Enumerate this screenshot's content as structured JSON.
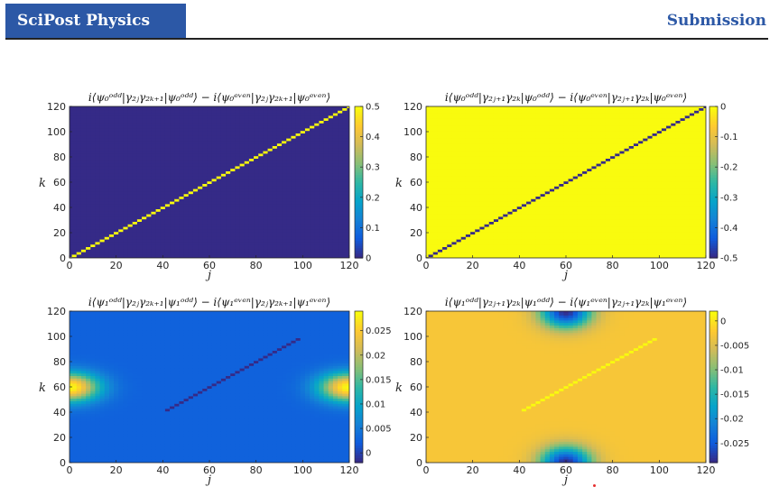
{
  "header": {
    "journal": "SciPost Physics",
    "label": "Submission",
    "brand_color": "#2c58a6",
    "rule_color": "#222222"
  },
  "colors": {
    "parula": [
      "#352a87",
      "#0f5cdd",
      "#1481d6",
      "#06a4ca",
      "#2eb7a4",
      "#87bf77",
      "#d1bb59",
      "#fec832",
      "#f9fb0e"
    ]
  },
  "chart_data": [
    {
      "type": "heatmap",
      "title": "i⟨ψ₀ᵒᵈᵈ|γ₂ⱼγ₂ₖ₊₁|ψ₀ᵒᵈᵈ⟩ − i⟨ψ₀ᵉᵛᵉⁿ|γ₂ⱼγ₂ₖ₊₁|ψ₀ᵉᵛᵉⁿ⟩",
      "xlabel": "j",
      "ylabel": "k",
      "xlim": [
        0,
        120
      ],
      "ylim": [
        0,
        120
      ],
      "xticks": [
        0,
        20,
        40,
        60,
        80,
        100,
        120
      ],
      "yticks": [
        0,
        20,
        40,
        60,
        80,
        100,
        120
      ],
      "clim": [
        0,
        0.5
      ],
      "cticks": [
        0,
        0.1,
        0.2,
        0.3,
        0.4,
        0.5
      ],
      "pattern": "diagonal",
      "background_value": 0,
      "diagonal_value": 0.5
    },
    {
      "type": "heatmap",
      "title": "i⟨ψ₀ᵒᵈᵈ|γ₂ⱼ₊₁γ₂ₖ|ψ₀ᵒᵈᵈ⟩ − i⟨ψ₀ᵉᵛᵉⁿ|γ₂ⱼ₊₁γ₂ₖ|ψ₀ᵉᵛᵉⁿ⟩",
      "xlabel": "j",
      "ylabel": "k",
      "xlim": [
        0,
        120
      ],
      "ylim": [
        0,
        120
      ],
      "xticks": [
        0,
        20,
        40,
        60,
        80,
        100,
        120
      ],
      "yticks": [
        0,
        20,
        40,
        60,
        80,
        100,
        120
      ],
      "clim": [
        -0.5,
        0
      ],
      "cticks": [
        0,
        -0.1,
        -0.2,
        -0.3,
        -0.4,
        -0.5
      ],
      "pattern": "diagonal",
      "background_value": 0,
      "diagonal_value": -0.5
    },
    {
      "type": "heatmap",
      "title": "i⟨ψ₁ᵒᵈᵈ|γ₂ⱼγ₂ₖ₊₁|ψ₁ᵒᵈᵈ⟩ − i⟨ψ₁ᵉᵛᵉⁿ|γ₂ⱼγ₂ₖ₊₁|ψ₁ᵉᵛᵉⁿ⟩",
      "xlabel": "j",
      "ylabel": "k",
      "xlim": [
        0,
        120
      ],
      "ylim": [
        0,
        120
      ],
      "xticks": [
        0,
        20,
        40,
        60,
        80,
        100,
        120
      ],
      "yticks": [
        0,
        20,
        40,
        60,
        80,
        100,
        120
      ],
      "clim": [
        -0.002,
        0.029
      ],
      "cticks": [
        0,
        0.005,
        0.01,
        0.015,
        0.02,
        0.025
      ],
      "pattern": "side-blobs",
      "background_value": 0.0025,
      "blob_centers": [
        [
          0,
          60
        ],
        [
          120,
          60
        ]
      ],
      "blob_peak": 0.029
    },
    {
      "type": "heatmap",
      "title": "i⟨ψ₁ᵒᵈᵈ|γ₂ⱼ₊₁γ₂ₖ|ψ₁ᵒᵈᵈ⟩ − i⟨ψ₁ᵉᵛᵉⁿ|γ₂ⱼ₊₁γ₂ₖ|ψ₁ᵉᵛᵉⁿ⟩",
      "xlabel": "j",
      "ylabel": "k",
      "xlim": [
        0,
        120
      ],
      "ylim": [
        0,
        120
      ],
      "xticks": [
        0,
        20,
        40,
        60,
        80,
        100,
        120
      ],
      "yticks": [
        0,
        20,
        40,
        60,
        80,
        100,
        120
      ],
      "clim": [
        -0.029,
        0.002
      ],
      "cticks": [
        0,
        -0.005,
        -0.01,
        -0.015,
        -0.02,
        -0.025
      ],
      "pattern": "top-bottom-blobs",
      "background_value": -0.0025,
      "blob_centers": [
        [
          60,
          0
        ],
        [
          60,
          120
        ]
      ],
      "blob_peak": -0.029
    }
  ]
}
